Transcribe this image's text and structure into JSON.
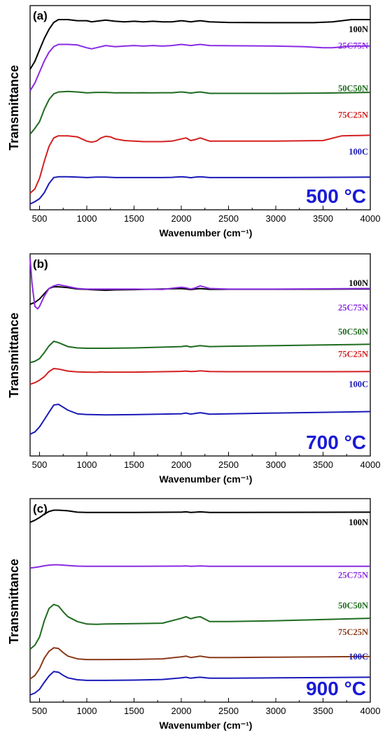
{
  "chart_data": [
    {
      "type": "line",
      "panel_label": "(a)",
      "annotation": "500 °C",
      "xlabel": "Wavenumber (cm⁻¹)",
      "ylabel": "Transmittance",
      "xlim": [
        400,
        4000
      ],
      "x_ticks": [
        500,
        1000,
        1500,
        2000,
        2500,
        3000,
        3500,
        4000
      ],
      "series": [
        {
          "name": "100N",
          "color": "#000000",
          "x": [
            400,
            450,
            500,
            550,
            600,
            650,
            700,
            800,
            900,
            1000,
            1050,
            1100,
            1200,
            1300,
            1400,
            1500,
            1600,
            1700,
            1800,
            1900,
            2000,
            2050,
            2100,
            2150,
            2200,
            2300,
            2500,
            3000,
            3400,
            3600,
            3800,
            4000
          ],
          "y": [
            0.55,
            0.62,
            0.72,
            0.82,
            0.9,
            0.96,
            0.985,
            0.985,
            0.975,
            0.975,
            0.965,
            0.97,
            0.98,
            0.97,
            0.965,
            0.97,
            0.965,
            0.97,
            0.965,
            0.965,
            0.975,
            0.97,
            0.965,
            0.97,
            0.975,
            0.965,
            0.96,
            0.958,
            0.958,
            0.965,
            0.985,
            0.985
          ]
        },
        {
          "name": "25C75N",
          "color": "#8a2be2",
          "x": [
            400,
            450,
            500,
            550,
            600,
            650,
            700,
            800,
            900,
            1000,
            1050,
            1100,
            1200,
            1300,
            1400,
            1500,
            1600,
            1700,
            1800,
            1900,
            2000,
            2050,
            2100,
            2150,
            2200,
            2300,
            2500,
            3000,
            3300,
            3500,
            3600,
            3800,
            4000
          ],
          "y": [
            0.45,
            0.52,
            0.62,
            0.72,
            0.8,
            0.85,
            0.87,
            0.87,
            0.865,
            0.84,
            0.83,
            0.84,
            0.86,
            0.85,
            0.855,
            0.86,
            0.855,
            0.86,
            0.855,
            0.86,
            0.87,
            0.865,
            0.86,
            0.865,
            0.87,
            0.86,
            0.858,
            0.855,
            0.85,
            0.84,
            0.84,
            0.855,
            0.855
          ]
        },
        {
          "name": "50C50N",
          "color": "#1f6b1f",
          "x": [
            400,
            450,
            500,
            550,
            600,
            650,
            700,
            800,
            900,
            1000,
            1100,
            1200,
            1300,
            1400,
            1500,
            1600,
            1700,
            1800,
            1900,
            2000,
            2050,
            2100,
            2150,
            2200,
            2300,
            2500,
            3000,
            3500,
            4000
          ],
          "y": [
            0.32,
            0.38,
            0.45,
            0.58,
            0.68,
            0.74,
            0.76,
            0.765,
            0.76,
            0.75,
            0.755,
            0.755,
            0.75,
            0.752,
            0.75,
            0.752,
            0.75,
            0.752,
            0.752,
            0.76,
            0.755,
            0.748,
            0.755,
            0.76,
            0.745,
            0.745,
            0.745,
            0.748,
            0.755
          ]
        },
        {
          "name": "75C25N",
          "color": "#d42020",
          "x": [
            400,
            450,
            500,
            550,
            600,
            650,
            700,
            800,
            900,
            1000,
            1050,
            1100,
            1150,
            1200,
            1250,
            1300,
            1400,
            1500,
            1600,
            1700,
            1800,
            1900,
            2000,
            2050,
            2100,
            2150,
            2200,
            2300,
            2500,
            3000,
            3500,
            3700,
            4000
          ],
          "y": [
            0.08,
            0.12,
            0.22,
            0.38,
            0.52,
            0.6,
            0.62,
            0.62,
            0.61,
            0.57,
            0.56,
            0.57,
            0.6,
            0.615,
            0.61,
            0.59,
            0.575,
            0.57,
            0.565,
            0.565,
            0.565,
            0.57,
            0.59,
            0.6,
            0.575,
            0.585,
            0.6,
            0.57,
            0.57,
            0.57,
            0.575,
            0.62,
            0.625
          ]
        },
        {
          "name": "100C",
          "color": "#1a1ab8",
          "x": [
            400,
            450,
            500,
            550,
            600,
            650,
            700,
            800,
            900,
            1000,
            1100,
            1200,
            1300,
            1400,
            1500,
            1600,
            1700,
            1800,
            1900,
            2000,
            2050,
            2100,
            2150,
            2200,
            2300,
            2500,
            3000,
            3500,
            4000
          ],
          "y": [
            0.05,
            0.08,
            0.12,
            0.2,
            0.32,
            0.4,
            0.41,
            0.41,
            0.405,
            0.4,
            0.405,
            0.405,
            0.4,
            0.4,
            0.4,
            0.4,
            0.4,
            0.4,
            0.402,
            0.41,
            0.405,
            0.398,
            0.405,
            0.41,
            0.4,
            0.4,
            0.4,
            0.402,
            0.405
          ]
        }
      ]
    },
    {
      "type": "line",
      "panel_label": "(b)",
      "annotation": "700 °C",
      "xlabel": "Wavenumber (cm⁻¹)",
      "ylabel": "Transmittance",
      "xlim": [
        400,
        4000
      ],
      "x_ticks": [
        500,
        1000,
        1500,
        2000,
        2500,
        3000,
        3500,
        4000
      ],
      "series": [
        {
          "name": "100N",
          "color": "#000000",
          "x": [
            400,
            450,
            500,
            550,
            600,
            650,
            700,
            800,
            900,
            1000,
            1100,
            1200,
            1300,
            1500,
            2000,
            2050,
            2100,
            2150,
            2200,
            2300,
            2500,
            3000,
            3500,
            4000
          ],
          "y": [
            0.7,
            0.72,
            0.76,
            0.82,
            0.88,
            0.9,
            0.9,
            0.89,
            0.875,
            0.87,
            0.865,
            0.86,
            0.865,
            0.868,
            0.88,
            0.875,
            0.868,
            0.875,
            0.88,
            0.87,
            0.872,
            0.872,
            0.873,
            0.875
          ]
        },
        {
          "name": "25C75N",
          "color": "#8a2be2",
          "x": [
            400,
            420,
            450,
            480,
            500,
            550,
            600,
            650,
            700,
            800,
            900,
            1000,
            1500,
            1800,
            2000,
            2050,
            2100,
            2150,
            2200,
            2300,
            2500,
            3000,
            3500,
            4000
          ],
          "y": [
            1.0,
            0.8,
            0.62,
            0.6,
            0.62,
            0.7,
            0.76,
            0.78,
            0.79,
            0.775,
            0.76,
            0.755,
            0.755,
            0.752,
            0.77,
            0.765,
            0.755,
            0.765,
            0.78,
            0.76,
            0.755,
            0.755,
            0.757,
            0.76
          ]
        },
        {
          "name": "50C50N",
          "color": "#1f6b1f",
          "x": [
            400,
            450,
            500,
            550,
            600,
            650,
            700,
            800,
            900,
            1000,
            1200,
            1500,
            2000,
            2050,
            2100,
            2150,
            2200,
            2300,
            2500,
            3000,
            3500,
            4000
          ],
          "y": [
            0.4,
            0.42,
            0.46,
            0.55,
            0.65,
            0.72,
            0.7,
            0.64,
            0.62,
            0.615,
            0.615,
            0.62,
            0.64,
            0.65,
            0.635,
            0.645,
            0.655,
            0.64,
            0.645,
            0.655,
            0.665,
            0.675
          ]
        },
        {
          "name": "75C25N",
          "color": "#d42020",
          "x": [
            400,
            450,
            500,
            550,
            600,
            650,
            700,
            800,
            900,
            1000,
            1100,
            1150,
            1200,
            1500,
            2000,
            2050,
            2100,
            2150,
            2200,
            2300,
            2500,
            3000,
            3500,
            4000
          ],
          "y": [
            0.3,
            0.33,
            0.38,
            0.45,
            0.55,
            0.61,
            0.6,
            0.56,
            0.545,
            0.54,
            0.535,
            0.545,
            0.54,
            0.54,
            0.555,
            0.56,
            0.55,
            0.555,
            0.565,
            0.55,
            0.548,
            0.548,
            0.548,
            0.55
          ]
        },
        {
          "name": "100C",
          "color": "#1a1ab8",
          "x": [
            400,
            450,
            500,
            550,
            600,
            650,
            700,
            750,
            800,
            900,
            1000,
            1200,
            1500,
            2000,
            2050,
            2100,
            2150,
            2200,
            2300,
            2500,
            3000,
            3500,
            4000
          ],
          "y": [
            0.05,
            0.08,
            0.15,
            0.25,
            0.35,
            0.45,
            0.46,
            0.42,
            0.38,
            0.33,
            0.32,
            0.315,
            0.318,
            0.33,
            0.34,
            0.325,
            0.335,
            0.345,
            0.325,
            0.33,
            0.34,
            0.35,
            0.36
          ]
        }
      ]
    },
    {
      "type": "line",
      "panel_label": "(c)",
      "annotation": "900 °C",
      "xlabel": "Wavenumber (cm⁻¹)",
      "ylabel": "Transmittance",
      "xlim": [
        400,
        4000
      ],
      "x_ticks": [
        500,
        1000,
        1500,
        2000,
        2500,
        3000,
        3500,
        4000
      ],
      "series": [
        {
          "name": "100N",
          "color": "#000000",
          "x": [
            400,
            450,
            500,
            550,
            600,
            650,
            700,
            800,
            900,
            1000,
            1200,
            1500,
            2000,
            2050,
            2100,
            2150,
            2200,
            2300,
            2500,
            3000,
            3500,
            4000
          ],
          "y": [
            0.8,
            0.83,
            0.87,
            0.92,
            0.96,
            0.98,
            0.98,
            0.97,
            0.95,
            0.945,
            0.945,
            0.945,
            0.95,
            0.955,
            0.945,
            0.95,
            0.955,
            0.945,
            0.945,
            0.947,
            0.948,
            0.95
          ]
        },
        {
          "name": "25C75N",
          "color": "#8a2be2",
          "x": [
            400,
            450,
            500,
            550,
            600,
            650,
            700,
            800,
            900,
            1000,
            1200,
            1500,
            2000,
            2050,
            2100,
            2150,
            2200,
            2300,
            2500,
            3000,
            3500,
            4000
          ],
          "y": [
            0.68,
            0.7,
            0.72,
            0.75,
            0.77,
            0.78,
            0.78,
            0.76,
            0.74,
            0.735,
            0.735,
            0.735,
            0.74,
            0.745,
            0.735,
            0.74,
            0.745,
            0.735,
            0.735,
            0.735,
            0.735,
            0.735
          ]
        },
        {
          "name": "50C50N",
          "color": "#1f6b1f",
          "x": [
            400,
            450,
            500,
            550,
            600,
            650,
            700,
            750,
            800,
            900,
            1000,
            1100,
            1200,
            1500,
            1800,
            2000,
            2050,
            2100,
            2150,
            2200,
            2250,
            2300,
            2500,
            3000,
            3500,
            4000
          ],
          "y": [
            0.2,
            0.25,
            0.35,
            0.55,
            0.7,
            0.75,
            0.73,
            0.66,
            0.6,
            0.54,
            0.51,
            0.505,
            0.51,
            0.515,
            0.52,
            0.58,
            0.6,
            0.575,
            0.59,
            0.6,
            0.57,
            0.54,
            0.54,
            0.55,
            0.565,
            0.58
          ]
        },
        {
          "name": "75C25N",
          "color": "#8b3a1a",
          "x": [
            400,
            450,
            500,
            550,
            600,
            650,
            700,
            750,
            800,
            900,
            1000,
            1200,
            1500,
            1800,
            2000,
            2050,
            2100,
            2150,
            2200,
            2300,
            2500,
            3000,
            3500,
            4000
          ],
          "y": [
            0.1,
            0.15,
            0.25,
            0.4,
            0.5,
            0.55,
            0.54,
            0.48,
            0.43,
            0.39,
            0.38,
            0.38,
            0.382,
            0.39,
            0.42,
            0.43,
            0.41,
            0.42,
            0.43,
            0.41,
            0.41,
            0.415,
            0.42,
            0.425
          ]
        },
        {
          "name": "100C",
          "color": "#1a1ab8",
          "x": [
            400,
            450,
            500,
            550,
            600,
            650,
            700,
            750,
            800,
            900,
            1000,
            1200,
            1500,
            1800,
            2000,
            2050,
            2100,
            2150,
            2200,
            2300,
            2500,
            3000,
            3500,
            4000
          ],
          "y": [
            0.05,
            0.08,
            0.14,
            0.25,
            0.35,
            0.42,
            0.41,
            0.36,
            0.32,
            0.29,
            0.28,
            0.28,
            0.285,
            0.295,
            0.32,
            0.33,
            0.315,
            0.325,
            0.33,
            0.315,
            0.315,
            0.32,
            0.325,
            0.33
          ]
        }
      ]
    }
  ]
}
